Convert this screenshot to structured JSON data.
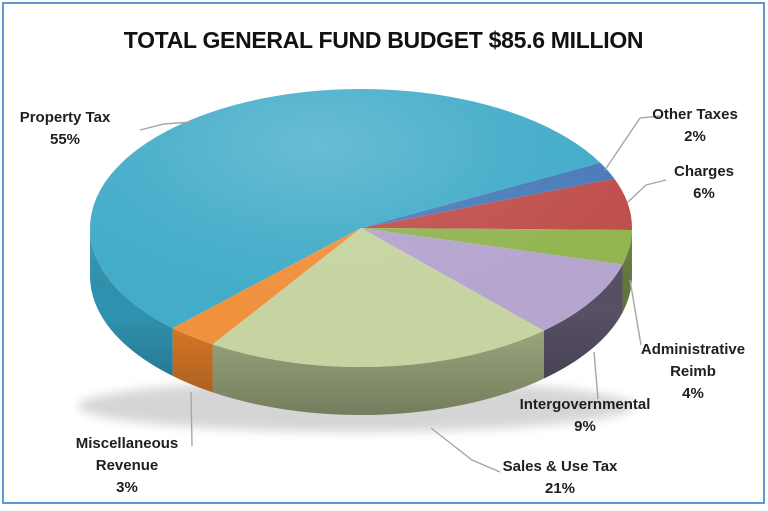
{
  "window": {
    "background": "#FFFFFF",
    "border_color": "#5B9BD5"
  },
  "title": "TOTAL GENERAL FUND BUDGET $85.6 MILLION",
  "chart_data": {
    "type": "pie",
    "style": "3d-pie",
    "title": "TOTAL GENERAL FUND BUDGET $85.6 MILLION",
    "total_label": "$85.6 MILLION",
    "legend_position": "none (callout labels with gray leader lines)",
    "start_angle_deg_clockwise_from_3oclock": 134,
    "leader_line_color": "#A6A6A6",
    "slices": [
      {
        "id": "property-tax",
        "label": "Property Tax",
        "pct": 55,
        "pct_label": "55%",
        "color": "#43ACC9",
        "side_color": "#2F93B0"
      },
      {
        "id": "other-taxes",
        "label": "Other Taxes",
        "pct": 2,
        "pct_label": "2%",
        "color": "#4A7CBA",
        "side_color": "#38608F"
      },
      {
        "id": "charges",
        "label": "Charges",
        "pct": 6,
        "pct_label": "6%",
        "color": "#C0504D",
        "side_color": "#8C3836"
      },
      {
        "id": "administrative-reimb",
        "label": "Administrative Reimb",
        "pct": 4,
        "pct_label": "4%",
        "color": "#92B551",
        "side_color": "#62783B"
      },
      {
        "id": "intergovernmental",
        "label": "Intergovernmental",
        "pct": 9,
        "pct_label": "9%",
        "color": "#B5A5CF",
        "side_color": "#575066"
      },
      {
        "id": "sales-use-tax",
        "label": "Sales & Use Tax",
        "pct": 21,
        "pct_label": "21%",
        "color": "#C5D4A1",
        "side_color": "#A0AE82"
      },
      {
        "id": "miscellaneous-revenue",
        "label": "Miscellaneous Revenue",
        "pct": 3,
        "pct_label": "3%",
        "color": "#F0913E",
        "side_color": "#DD7C28"
      }
    ]
  }
}
